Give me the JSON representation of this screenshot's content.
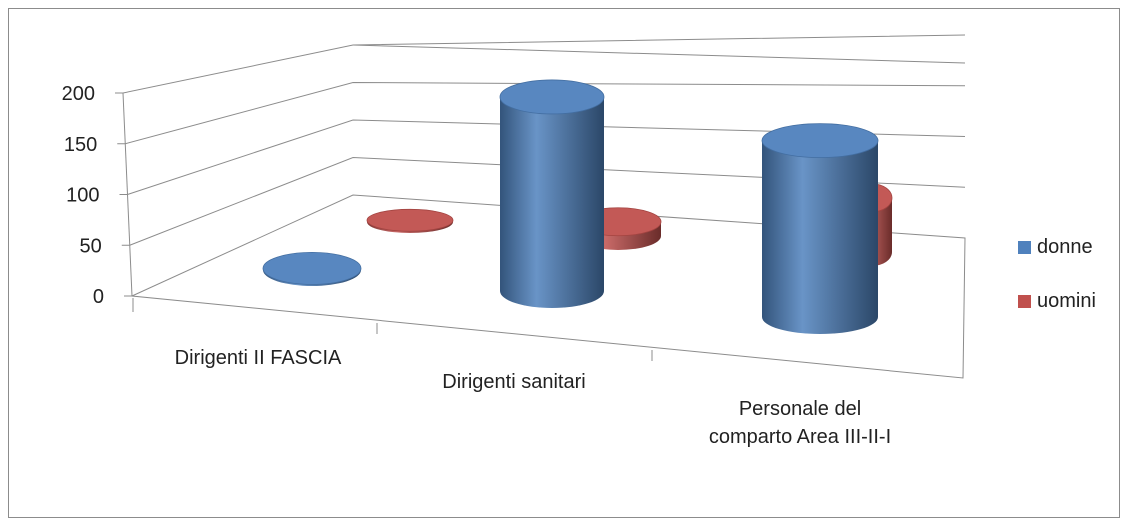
{
  "chart_data": {
    "type": "bar",
    "categories": [
      "Dirigenti II FASCIA",
      "Dirigenti sanitari",
      "Personale del comparto Area III-II-I"
    ],
    "series": [
      {
        "name": "donne",
        "values": [
          2,
          198,
          180
        ],
        "color": "#4F81BD"
      },
      {
        "name": "uomini",
        "values": [
          3,
          25,
          95
        ],
        "color": "#C0504D"
      }
    ],
    "yticks": [
      0,
      50,
      100,
      150,
      200
    ],
    "ylim": [
      0,
      200
    ],
    "title": "",
    "xlabel": "",
    "ylabel": "",
    "grid": true,
    "legend": "right",
    "style": "3d-cylinder"
  }
}
